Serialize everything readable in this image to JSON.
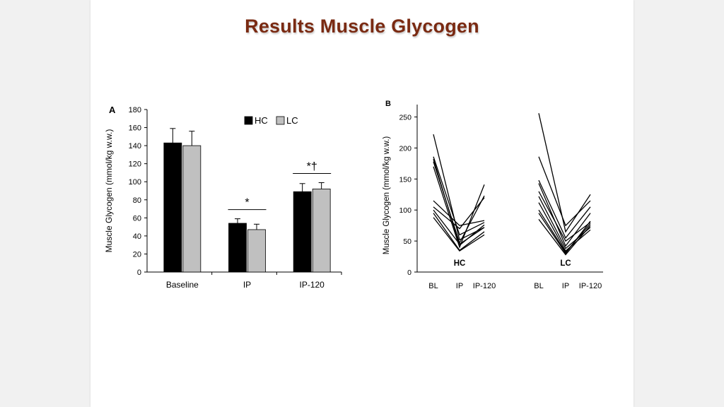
{
  "slide": {
    "title": "Results Muscle Glycogen"
  },
  "chart_data": [
    {
      "panel_label": "A",
      "type": "bar",
      "categories": [
        "Baseline",
        "IP",
        "IP-120"
      ],
      "series": [
        {
          "name": "HC",
          "values": [
            143,
            54,
            89
          ],
          "errors": [
            16,
            5,
            9
          ],
          "color": "#000000"
        },
        {
          "name": "LC",
          "values": [
            140,
            47,
            92
          ],
          "errors": [
            16,
            6,
            7
          ],
          "color": "#c0c0c0"
        }
      ],
      "ylabel": "Muscle Glycogen (mmol/kg w.w.)",
      "ylim": [
        0,
        180
      ],
      "yticks": [
        "0",
        "20",
        "40",
        "60",
        "80",
        "100",
        "120",
        "140",
        "160",
        "180"
      ],
      "legend": "top-center",
      "annotations": [
        {
          "text": "*",
          "category": "IP"
        },
        {
          "text": "*†",
          "category": "IP-120"
        }
      ]
    },
    {
      "panel_label": "B",
      "type": "line",
      "ylabel": "Muscle Glycogen (mmol/kg w.w.)",
      "ylim": [
        0,
        270
      ],
      "yticks": [
        "0",
        "50",
        "100",
        "150",
        "200",
        "250"
      ],
      "groups": [
        {
          "name": "HC",
          "x": [
            "BL",
            "IP",
            "IP-120"
          ],
          "subjects": [
            [
              222,
              52,
              72
            ],
            [
              186,
              60,
              80
            ],
            [
              182,
              43,
              76
            ],
            [
              178,
              47,
              123
            ],
            [
              170,
              40,
              141
            ],
            [
              115,
              75,
              83
            ],
            [
              105,
              70,
              120
            ],
            [
              100,
              45,
              72
            ],
            [
              95,
              35,
              65
            ],
            [
              88,
              34,
              60
            ]
          ]
        },
        {
          "name": "LC",
          "x": [
            "BL",
            "IP",
            "IP-120"
          ],
          "subjects": [
            [
              256,
              65,
              125
            ],
            [
              186,
              75,
              115
            ],
            [
              148,
              55,
              105
            ],
            [
              143,
              42,
              95
            ],
            [
              130,
              50,
              80
            ],
            [
              122,
              38,
              72
            ],
            [
              112,
              34,
              68
            ],
            [
              100,
              32,
              78
            ],
            [
              95,
              30,
              82
            ],
            [
              85,
              28,
              75
            ]
          ]
        }
      ]
    }
  ]
}
